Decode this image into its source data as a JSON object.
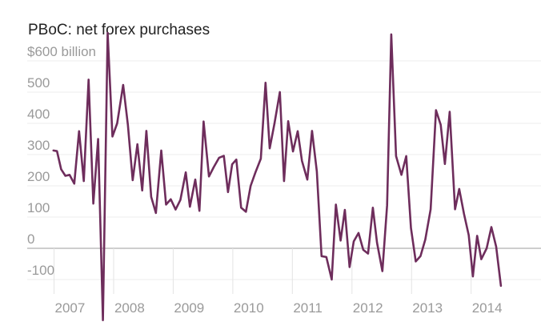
{
  "chart_data": {
    "type": "line",
    "title": "PBoC: net forex purchases",
    "xlabel": "",
    "ylabel": "",
    "ylim": [
      -100,
      600
    ],
    "xlim": [
      2006.55,
      2014.85
    ],
    "y_ticks": [
      600,
      500,
      400,
      300,
      200,
      100,
      0,
      -100
    ],
    "y_tick_labels": [
      "$600 billion",
      "500",
      "400",
      "300",
      "200",
      "100",
      "0",
      "-100"
    ],
    "x_ticks": [
      2007,
      2008,
      2009,
      2010,
      2011,
      2012,
      2013,
      2014
    ],
    "x_tick_labels": [
      "2007",
      "2008",
      "2009",
      "2010",
      "2011",
      "2012",
      "2013",
      "2014"
    ],
    "grid": true,
    "legend": "none",
    "series": [
      {
        "name": "Net forex purchases",
        "color": "#6e2d5c",
        "points": [
          [
            2006.99,
            313
          ],
          [
            2007.05,
            311
          ],
          [
            2007.12,
            253
          ],
          [
            2007.19,
            232
          ],
          [
            2007.26,
            235
          ],
          [
            2007.34,
            207
          ],
          [
            2007.42,
            375
          ],
          [
            2007.5,
            215
          ],
          [
            2007.58,
            540
          ],
          [
            2007.66,
            143
          ],
          [
            2007.74,
            350
          ],
          [
            2007.82,
            -230
          ],
          [
            2007.9,
            690
          ],
          [
            2007.98,
            358
          ],
          [
            2008.06,
            400
          ],
          [
            2008.16,
            523
          ],
          [
            2008.24,
            395
          ],
          [
            2008.32,
            218
          ],
          [
            2008.4,
            333
          ],
          [
            2008.48,
            185
          ],
          [
            2008.55,
            376
          ],
          [
            2008.63,
            165
          ],
          [
            2008.71,
            113
          ],
          [
            2008.8,
            313
          ],
          [
            2008.88,
            140
          ],
          [
            2008.96,
            157
          ],
          [
            2009.04,
            124
          ],
          [
            2009.12,
            155
          ],
          [
            2009.21,
            243
          ],
          [
            2009.28,
            133
          ],
          [
            2009.37,
            220
          ],
          [
            2009.44,
            120
          ],
          [
            2009.51,
            406
          ],
          [
            2009.6,
            230
          ],
          [
            2009.68,
            260
          ],
          [
            2009.77,
            290
          ],
          [
            2009.85,
            296
          ],
          [
            2009.92,
            180
          ],
          [
            2009.99,
            269
          ],
          [
            2010.06,
            284
          ],
          [
            2010.14,
            130
          ],
          [
            2010.22,
            117
          ],
          [
            2010.3,
            200
          ],
          [
            2010.38,
            243
          ],
          [
            2010.47,
            287
          ],
          [
            2010.55,
            530
          ],
          [
            2010.62,
            320
          ],
          [
            2010.7,
            400
          ],
          [
            2010.79,
            500
          ],
          [
            2010.86,
            215
          ],
          [
            2010.93,
            407
          ],
          [
            2011.01,
            310
          ],
          [
            2011.09,
            375
          ],
          [
            2011.16,
            280
          ],
          [
            2011.25,
            220
          ],
          [
            2011.33,
            376
          ],
          [
            2011.41,
            246
          ],
          [
            2011.49,
            -25
          ],
          [
            2011.57,
            -28
          ],
          [
            2011.66,
            -100
          ],
          [
            2011.73,
            140
          ],
          [
            2011.81,
            25
          ],
          [
            2011.88,
            123
          ],
          [
            2011.96,
            -60
          ],
          [
            2012.03,
            22
          ],
          [
            2012.11,
            49
          ],
          [
            2012.19,
            -5
          ],
          [
            2012.27,
            -17
          ],
          [
            2012.35,
            130
          ],
          [
            2012.42,
            18
          ],
          [
            2012.51,
            -73
          ],
          [
            2012.59,
            138
          ],
          [
            2012.66,
            685
          ],
          [
            2012.74,
            295
          ],
          [
            2012.83,
            235
          ],
          [
            2012.91,
            295
          ],
          [
            2012.99,
            65
          ],
          [
            2013.07,
            -42
          ],
          [
            2013.15,
            -25
          ],
          [
            2013.23,
            28
          ],
          [
            2013.32,
            125
          ],
          [
            2013.41,
            442
          ],
          [
            2013.49,
            395
          ],
          [
            2013.56,
            270
          ],
          [
            2013.64,
            437
          ],
          [
            2013.73,
            125
          ],
          [
            2013.8,
            190
          ],
          [
            2013.88,
            110
          ],
          [
            2013.96,
            42
          ],
          [
            2014.03,
            -90
          ],
          [
            2014.1,
            40
          ],
          [
            2014.17,
            -35
          ],
          [
            2014.26,
            0
          ],
          [
            2014.34,
            68
          ],
          [
            2014.42,
            5
          ],
          [
            2014.5,
            -120
          ]
        ]
      }
    ]
  }
}
